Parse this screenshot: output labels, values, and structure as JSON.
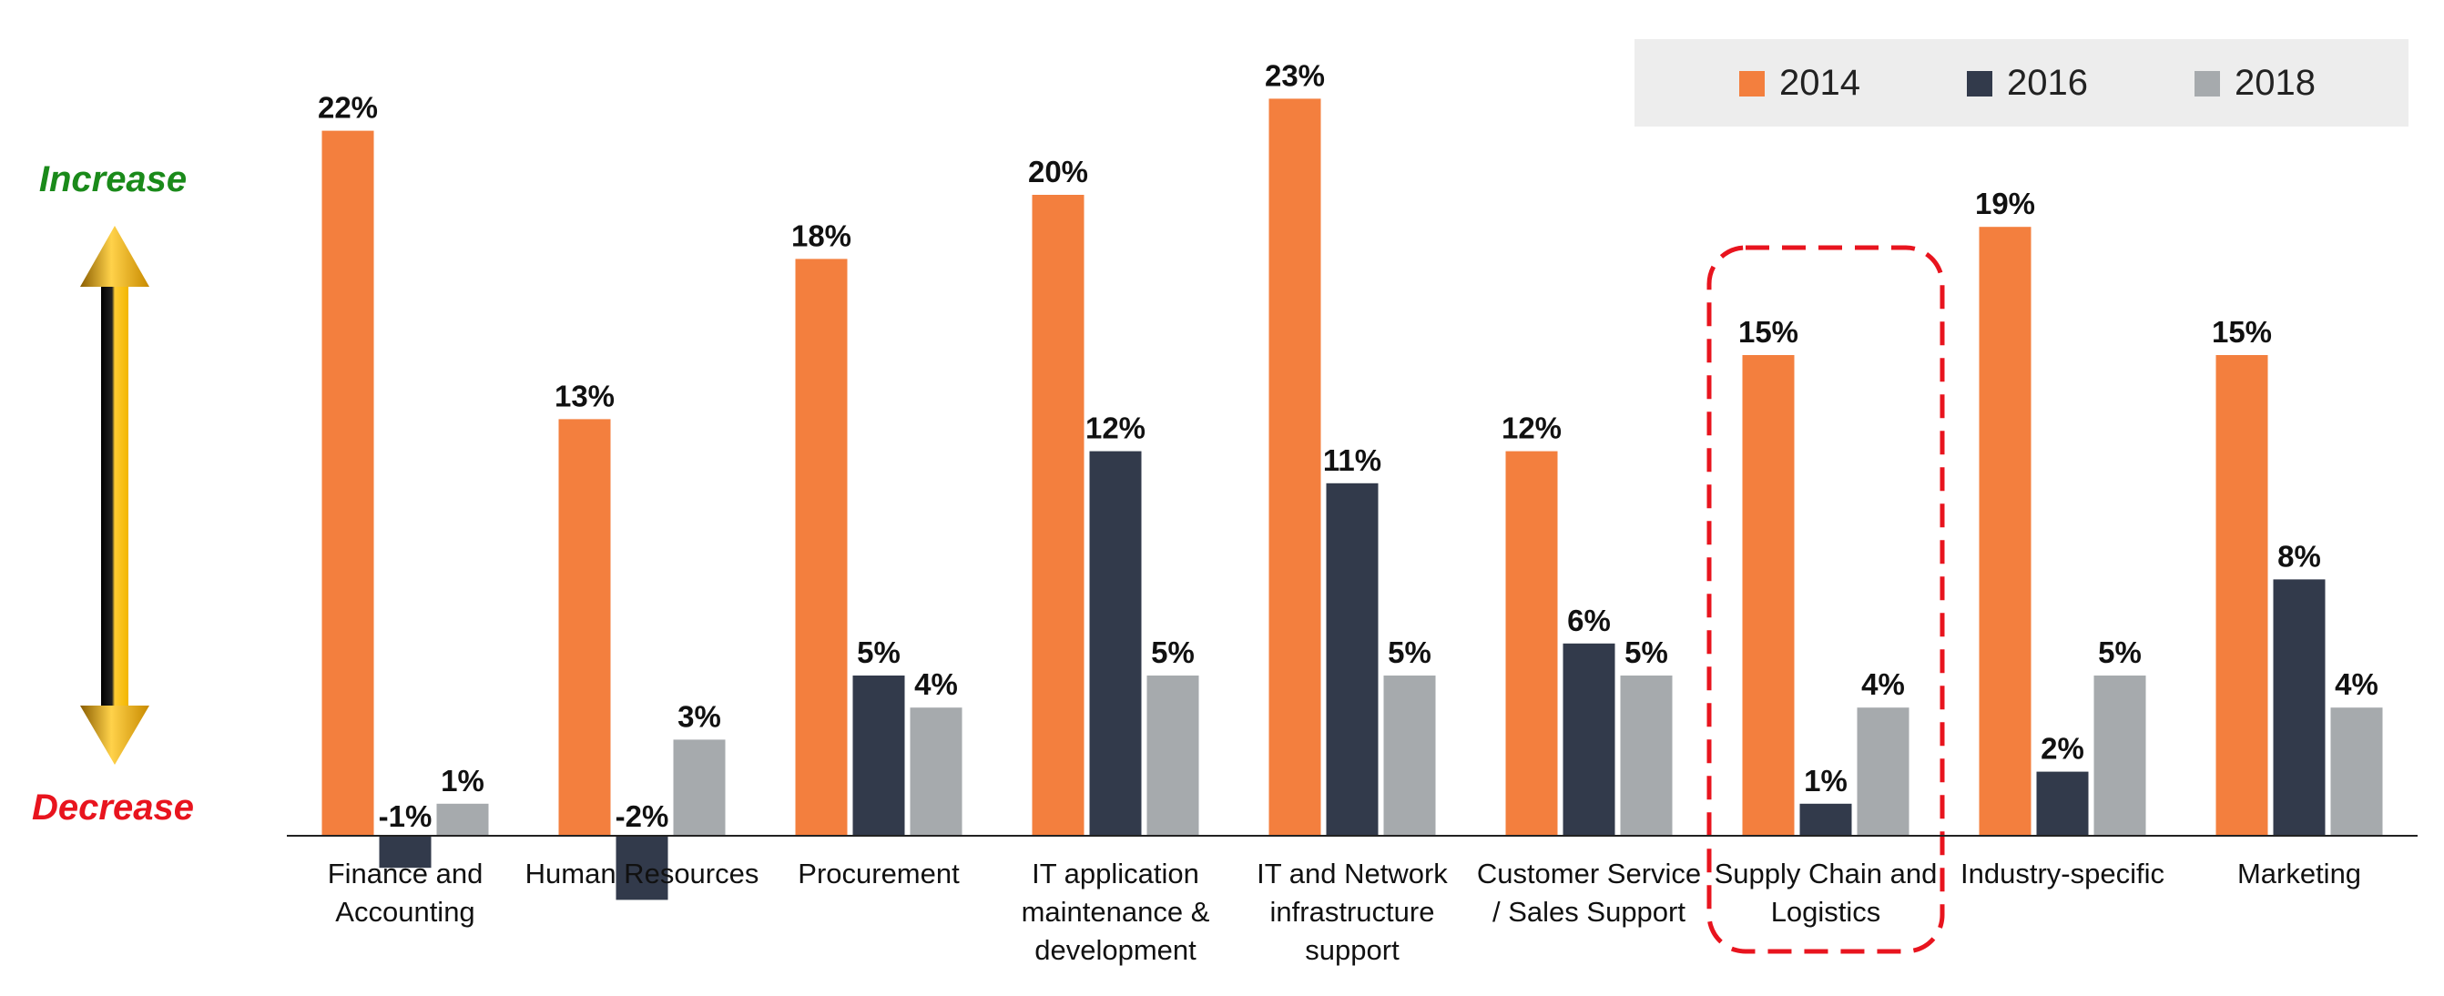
{
  "chart_data": {
    "type": "bar",
    "categories": [
      [
        "Finance and",
        "Accounting"
      ],
      [
        "Human Resources"
      ],
      [
        "Procurement"
      ],
      [
        "IT application",
        "maintenance &",
        "development"
      ],
      [
        "IT and Network",
        "infrastructure",
        "support"
      ],
      [
        "Customer Service",
        "/ Sales Support"
      ],
      [
        "Supply Chain and",
        "Logistics"
      ],
      [
        "Industry-specific"
      ],
      [
        "Marketing"
      ]
    ],
    "series": [
      {
        "name": "2014",
        "color": "#f37f3e",
        "values": [
          22,
          13,
          18,
          20,
          23,
          12,
          15,
          19,
          15
        ],
        "labels": [
          "22%",
          "13%",
          "18%",
          "20%",
          "23%",
          "12%",
          "15%",
          "19%",
          "15%"
        ]
      },
      {
        "name": "2016",
        "color": "#323a4b",
        "values": [
          -1,
          -2,
          5,
          12,
          11,
          6,
          1,
          2,
          8
        ],
        "labels": [
          "-1%",
          "-2%",
          "5%",
          "12%",
          "11%",
          "6%",
          "1%",
          "2%",
          "8%"
        ]
      },
      {
        "name": "2018",
        "color": "#a6aaad",
        "values": [
          1,
          3,
          4,
          5,
          5,
          5,
          4,
          5,
          4
        ],
        "labels": [
          "1%",
          "3%",
          "4%",
          "5%",
          "5%",
          "5%",
          "4%",
          "5%",
          "4%"
        ]
      }
    ],
    "ylim": [
      -2.5,
      25
    ],
    "highlighted_category": 6,
    "legend_position": "top-right",
    "grid": false,
    "axis_labels": {
      "increase": "Increase",
      "decrease": "Decrease"
    },
    "colors": {
      "increase": "#1a8a1a",
      "decrease": "#e8141e",
      "highlight": "#e8141e",
      "legend_bg": "#ededed"
    }
  }
}
